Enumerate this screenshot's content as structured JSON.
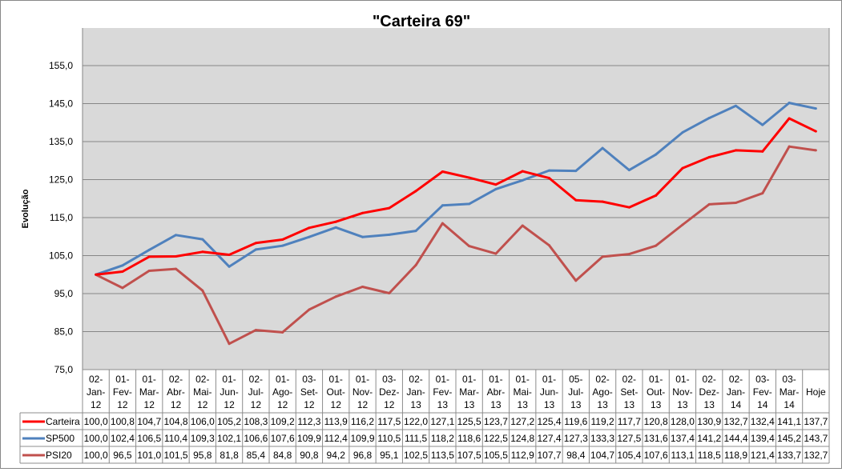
{
  "chart_data": {
    "type": "line",
    "title": "\"Carteira 69\"",
    "ylabel": "Evolução",
    "xlabel": "",
    "ylim": [
      75,
      155
    ],
    "yticks": [
      "75,0",
      "85,0",
      "95,0",
      "105,0",
      "115,0",
      "125,0",
      "135,0",
      "145,0",
      "155,0"
    ],
    "grid": true,
    "legend": "data-table",
    "categories": [
      "02-Jan-12",
      "01-Fev-12",
      "01-Mar-12",
      "02-Abr-12",
      "02-Mai-12",
      "01-Jun-12",
      "02-Jul-12",
      "01-Ago-12",
      "03-Set-12",
      "01-Out-12",
      "01-Nov-12",
      "03-Dez-12",
      "02-Jan-13",
      "01-Fev-13",
      "01-Mar-13",
      "01-Abr-13",
      "01-Mai-13",
      "01-Jun-13",
      "05-Jul-13",
      "02-Ago-13",
      "02-Set-13",
      "01-Out-13",
      "01-Nov-13",
      "02-Dez-13",
      "02-Jan-14",
      "03-Fev-14",
      "03-Mar-14",
      "Hoje"
    ],
    "series": [
      {
        "name": "Carteira",
        "color": "#ff0000",
        "values": [
          100.0,
          100.8,
          104.7,
          104.8,
          106.0,
          105.2,
          108.3,
          109.2,
          112.3,
          113.9,
          116.2,
          117.5,
          122.0,
          127.1,
          125.5,
          123.7,
          127.2,
          125.4,
          119.6,
          119.2,
          117.7,
          120.8,
          128.0,
          130.9,
          132.7,
          132.4,
          141.1,
          137.7
        ]
      },
      {
        "name": "SP500",
        "color": "#4f81bd",
        "values": [
          100.0,
          102.4,
          106.5,
          110.4,
          109.3,
          102.1,
          106.6,
          107.6,
          109.9,
          112.4,
          109.9,
          110.5,
          111.5,
          118.2,
          118.6,
          122.5,
          124.8,
          127.4,
          127.3,
          133.3,
          127.5,
          131.6,
          137.4,
          141.2,
          144.4,
          139.4,
          145.2,
          143.7
        ]
      },
      {
        "name": "PSI20",
        "color": "#c0504d",
        "values": [
          100.0,
          96.5,
          101.0,
          101.5,
          95.8,
          81.8,
          85.4,
          84.8,
          90.8,
          94.2,
          96.8,
          95.1,
          102.5,
          113.5,
          107.5,
          105.5,
          112.9,
          107.7,
          98.4,
          104.7,
          105.4,
          107.6,
          113.1,
          118.5,
          118.9,
          121.4,
          133.7,
          132.7
        ]
      }
    ]
  }
}
